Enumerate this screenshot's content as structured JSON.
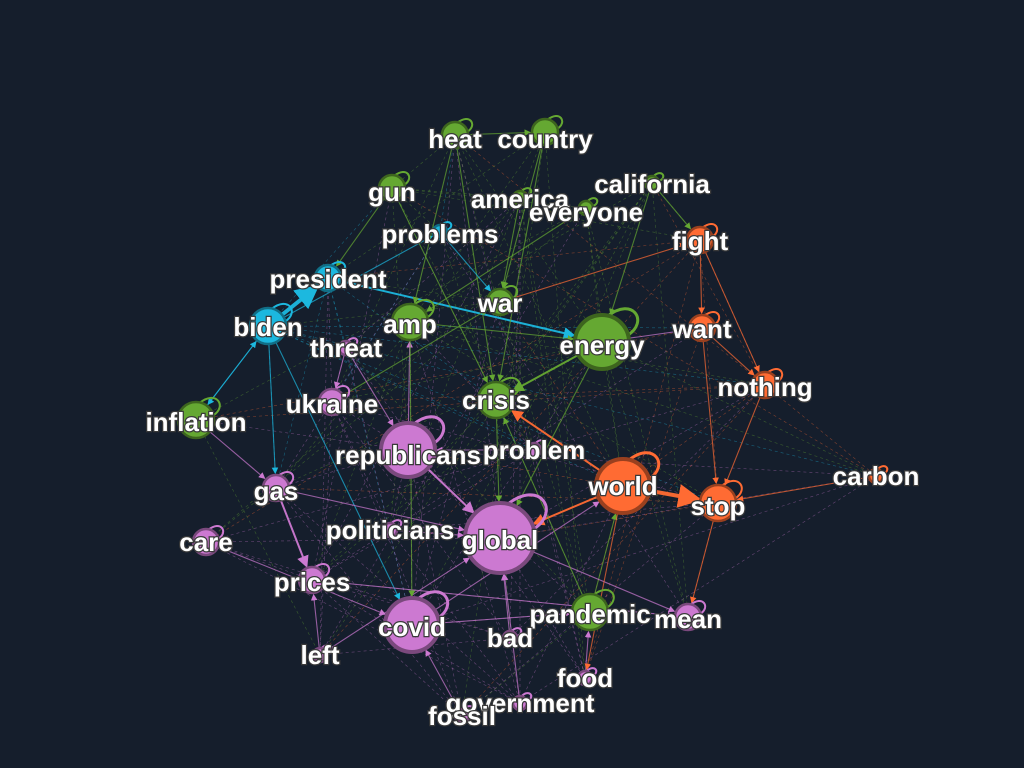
{
  "colors": {
    "background": "#151e2c",
    "green": "#65a832",
    "orange": "#ff6b33",
    "cyan": "#1cb8df",
    "purple": "#cc79d1"
  },
  "nodes": [
    {
      "id": "heat",
      "label": "heat",
      "group": "green",
      "size": "small"
    },
    {
      "id": "country",
      "label": "country",
      "group": "green",
      "size": "small"
    },
    {
      "id": "california",
      "label": "california",
      "group": "green",
      "size": "tiny"
    },
    {
      "id": "gun",
      "label": "gun",
      "group": "green",
      "size": "small"
    },
    {
      "id": "america",
      "label": "america",
      "group": "green",
      "size": "tiny"
    },
    {
      "id": "everyone",
      "label": "everyone",
      "group": "green",
      "size": "tiny"
    },
    {
      "id": "problems",
      "label": "problems",
      "group": "cyan",
      "size": "tiny"
    },
    {
      "id": "fight",
      "label": "fight",
      "group": "orange",
      "size": "small"
    },
    {
      "id": "president",
      "label": "president",
      "group": "cyan",
      "size": "small"
    },
    {
      "id": "biden",
      "label": "biden",
      "group": "cyan",
      "size": "medium"
    },
    {
      "id": "amp",
      "label": "amp",
      "group": "green",
      "size": "medium"
    },
    {
      "id": "war",
      "label": "war",
      "group": "green",
      "size": "small"
    },
    {
      "id": "energy",
      "label": "energy",
      "group": "green",
      "size": "large"
    },
    {
      "id": "want",
      "label": "want",
      "group": "orange",
      "size": "small"
    },
    {
      "id": "threat",
      "label": "threat",
      "group": "purple",
      "size": "tiny"
    },
    {
      "id": "nothing",
      "label": "nothing",
      "group": "orange",
      "size": "small"
    },
    {
      "id": "inflation",
      "label": "inflation",
      "group": "green",
      "size": "medium"
    },
    {
      "id": "ukraine",
      "label": "ukraine",
      "group": "purple",
      "size": "small"
    },
    {
      "id": "crisis",
      "label": "crisis",
      "group": "green",
      "size": "medium"
    },
    {
      "id": "republicans",
      "label": "republicans",
      "group": "purple",
      "size": "large"
    },
    {
      "id": "problem",
      "label": "problem",
      "group": "purple",
      "size": "tiny"
    },
    {
      "id": "carbon",
      "label": "carbon",
      "group": "orange",
      "size": "tiny"
    },
    {
      "id": "world",
      "label": "world",
      "group": "orange",
      "size": "large"
    },
    {
      "id": "stop",
      "label": "stop",
      "group": "orange",
      "size": "medium"
    },
    {
      "id": "gas",
      "label": "gas",
      "group": "purple",
      "size": "small"
    },
    {
      "id": "politicians",
      "label": "politicians",
      "group": "purple",
      "size": "tiny"
    },
    {
      "id": "global",
      "label": "global",
      "group": "purple",
      "size": "xlarge"
    },
    {
      "id": "care",
      "label": "care",
      "group": "purple",
      "size": "small"
    },
    {
      "id": "prices",
      "label": "prices",
      "group": "purple",
      "size": "small"
    },
    {
      "id": "pandemic",
      "label": "pandemic",
      "group": "green",
      "size": "medium"
    },
    {
      "id": "mean",
      "label": "mean",
      "group": "purple",
      "size": "small"
    },
    {
      "id": "covid",
      "label": "covid",
      "group": "purple",
      "size": "large"
    },
    {
      "id": "bad",
      "label": "bad",
      "group": "purple",
      "size": "tiny"
    },
    {
      "id": "left",
      "label": "left",
      "group": "purple",
      "size": "tiny"
    },
    {
      "id": "food",
      "label": "food",
      "group": "purple",
      "size": "tiny"
    },
    {
      "id": "government",
      "label": "government",
      "group": "purple",
      "size": "tiny"
    },
    {
      "id": "fossil",
      "label": "fossil",
      "group": "purple",
      "size": "tiny"
    }
  ],
  "edges": [
    {
      "from": "biden",
      "to": "president",
      "group": "cyan",
      "weight": 3
    },
    {
      "from": "president",
      "to": "energy",
      "group": "cyan",
      "weight": 2
    },
    {
      "from": "biden",
      "to": "problems",
      "group": "cyan",
      "weight": 1
    },
    {
      "from": "biden",
      "to": "covid",
      "group": "cyan",
      "weight": 1
    },
    {
      "from": "biden",
      "to": "inflation",
      "group": "cyan",
      "weight": 1
    },
    {
      "from": "world",
      "to": "stop",
      "group": "orange",
      "weight": 3
    },
    {
      "from": "world",
      "to": "crisis",
      "group": "orange",
      "weight": 2
    },
    {
      "from": "world",
      "to": "global",
      "group": "orange",
      "weight": 2
    },
    {
      "from": "war",
      "to": "fight",
      "group": "orange",
      "weight": 1
    },
    {
      "from": "fight",
      "to": "nothing",
      "group": "orange",
      "weight": 1
    },
    {
      "from": "want",
      "to": "stop",
      "group": "orange",
      "weight": 1
    },
    {
      "from": "nothing",
      "to": "stop",
      "group": "orange",
      "weight": 1
    },
    {
      "from": "energy",
      "to": "crisis",
      "group": "green",
      "weight": 2
    },
    {
      "from": "california",
      "to": "fight",
      "group": "green",
      "weight": 1
    },
    {
      "from": "heat",
      "to": "crisis",
      "group": "green",
      "weight": 1
    },
    {
      "from": "country",
      "to": "war",
      "group": "green",
      "weight": 1
    },
    {
      "from": "amp",
      "to": "energy",
      "group": "green",
      "weight": 1
    },
    {
      "from": "america",
      "to": "war",
      "group": "green",
      "weight": 1
    },
    {
      "from": "pandemic",
      "to": "world",
      "group": "green",
      "weight": 1
    },
    {
      "from": "gun",
      "to": "crisis",
      "group": "green",
      "weight": 1
    },
    {
      "from": "republicans",
      "to": "global",
      "group": "purple",
      "weight": 2
    },
    {
      "from": "gas",
      "to": "prices",
      "group": "purple",
      "weight": 2
    },
    {
      "from": "republicans",
      "to": "amp",
      "group": "purple",
      "weight": 1
    },
    {
      "from": "politicians",
      "to": "global",
      "group": "purple",
      "weight": 1
    },
    {
      "from": "global",
      "to": "mean",
      "group": "purple",
      "weight": 1
    },
    {
      "from": "care",
      "to": "covid",
      "group": "purple",
      "weight": 1
    },
    {
      "from": "covid",
      "to": "pandemic",
      "group": "purple",
      "weight": 1
    },
    {
      "from": "threat",
      "to": "ukraine",
      "group": "purple",
      "weight": 1
    },
    {
      "from": "problem",
      "to": "republicans",
      "group": "purple",
      "weight": 1
    },
    {
      "from": "energy",
      "to": "want",
      "group": "purple",
      "weight": 1
    },
    {
      "from": "inflation",
      "to": "gas",
      "group": "purple",
      "weight": 1
    },
    {
      "from": "left",
      "to": "prices",
      "group": "purple",
      "weight": 1
    },
    {
      "from": "government",
      "to": "global",
      "group": "purple",
      "weight": 1
    },
    {
      "from": "food",
      "to": "pandemic",
      "group": "purple",
      "weight": 1
    },
    {
      "from": "fossil",
      "to": "covid",
      "group": "purple",
      "weight": 1
    },
    {
      "from": "bad",
      "to": "global",
      "group": "purple",
      "weight": 1
    },
    {
      "from": "carbon",
      "to": "stop",
      "group": "orange",
      "weight": 1
    },
    {
      "from": "everyone",
      "to": "amp",
      "group": "green",
      "weight": 1
    },
    {
      "from": "ukraine",
      "to": "war",
      "group": "green",
      "weight": 1
    },
    {
      "from": "heat",
      "to": "amp",
      "group": "green",
      "weight": 1
    },
    {
      "from": "country",
      "to": "crisis",
      "group": "green",
      "weight": 1
    },
    {
      "from": "problems",
      "to": "war",
      "group": "cyan",
      "weight": 1
    },
    {
      "from": "inflation",
      "to": "biden",
      "group": "cyan",
      "weight": 1
    },
    {
      "from": "prices",
      "to": "mean",
      "group": "purple",
      "weight": 1
    },
    {
      "from": "left",
      "to": "global",
      "group": "purple",
      "weight": 1
    },
    {
      "from": "covid",
      "to": "world",
      "group": "purple",
      "weight": 1
    },
    {
      "from": "pandemic",
      "to": "crisis",
      "group": "green",
      "weight": 1
    },
    {
      "from": "gas",
      "to": "global",
      "group": "purple",
      "weight": 1
    },
    {
      "from": "california",
      "to": "energy",
      "group": "green",
      "weight": 1
    },
    {
      "from": "want",
      "to": "nothing",
      "group": "orange",
      "weight": 1
    },
    {
      "from": "fight",
      "to": "want",
      "group": "orange",
      "weight": 1
    },
    {
      "from": "stop",
      "to": "mean",
      "group": "orange",
      "weight": 1
    },
    {
      "from": "crisis",
      "to": "global",
      "group": "green",
      "weight": 1
    },
    {
      "from": "amp",
      "to": "covid",
      "group": "green",
      "weight": 1
    },
    {
      "from": "biden",
      "to": "gas",
      "group": "cyan",
      "weight": 1
    },
    {
      "from": "heat",
      "to": "country",
      "group": "green",
      "weight": 1
    },
    {
      "from": "gun",
      "to": "president",
      "group": "green",
      "weight": 1
    },
    {
      "from": "threat",
      "to": "republicans",
      "group": "purple",
      "weight": 1
    },
    {
      "from": "energy",
      "to": "global",
      "group": "green",
      "weight": 1
    },
    {
      "from": "world",
      "to": "food",
      "group": "orange",
      "weight": 1
    }
  ]
}
